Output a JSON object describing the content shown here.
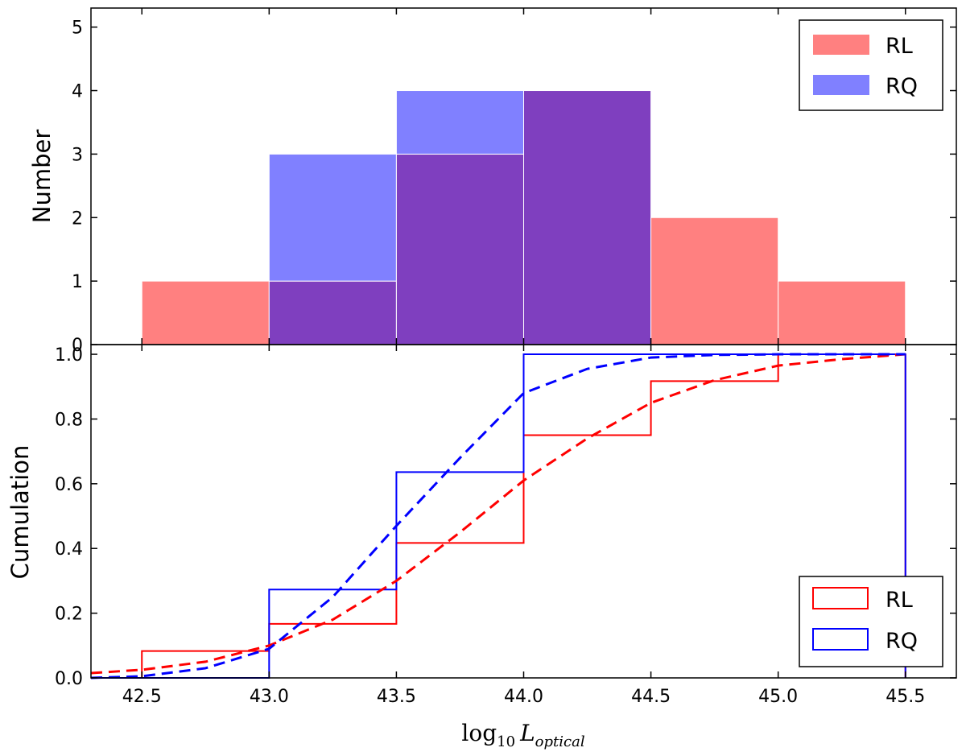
{
  "chart_data": [
    {
      "type": "bar",
      "panel": "top",
      "title": "",
      "xlabel": "",
      "ylabel": "Number",
      "xlim": [
        42.3,
        45.7
      ],
      "ylim": [
        0,
        5.3
      ],
      "yticks": [
        "0",
        "1",
        "2",
        "3",
        "4",
        "5"
      ],
      "bin_edges": [
        42.5,
        43.0,
        43.5,
        44.0,
        44.5,
        45.0,
        45.5
      ],
      "series": [
        {
          "name": "RL",
          "color": "#ff8080",
          "values": [
            1,
            1,
            3,
            4,
            2,
            1
          ]
        },
        {
          "name": "RQ",
          "color": "#8080ff",
          "values": [
            0,
            3,
            4,
            4,
            0,
            0
          ]
        }
      ],
      "overlap_color": "#7f3fbf",
      "legend": {
        "position": "top-right",
        "entries": [
          "RL",
          "RQ"
        ]
      }
    },
    {
      "type": "line",
      "panel": "bottom",
      "title": "",
      "xlabel": "log10 L optical",
      "xlabel_parts": {
        "log": "log",
        "sub10": "10",
        "L": "L",
        "subopt": "optical"
      },
      "ylabel": "Cumulation",
      "xlim": [
        42.3,
        45.7
      ],
      "ylim": [
        0.0,
        1.03
      ],
      "xticks": [
        "42.5",
        "43.0",
        "43.5",
        "44.0",
        "44.5",
        "45.0",
        "45.5"
      ],
      "yticks": [
        "0.0",
        "0.2",
        "0.4",
        "0.6",
        "0.8",
        "1.0"
      ],
      "series": [
        {
          "name": "RL",
          "style": "step",
          "color": "#ff0000",
          "x": [
            42.5,
            43.0,
            43.5,
            44.0,
            44.5,
            45.0,
            45.5
          ],
          "y": [
            0.083,
            0.167,
            0.417,
            0.75,
            0.917,
            1.0,
            0.0
          ]
        },
        {
          "name": "RQ",
          "style": "step",
          "color": "#0000ff",
          "x": [
            43.0,
            43.5,
            44.0,
            45.5
          ],
          "y": [
            0.273,
            0.636,
            1.0,
            0.0
          ]
        },
        {
          "name": "RL fit",
          "style": "dashed",
          "color": "#ff0000",
          "x": [
            42.3,
            42.5,
            42.75,
            43.0,
            43.25,
            43.5,
            43.75,
            44.0,
            44.25,
            44.5,
            44.75,
            45.0,
            45.25,
            45.5
          ],
          "y": [
            0.015,
            0.025,
            0.05,
            0.1,
            0.18,
            0.3,
            0.45,
            0.61,
            0.74,
            0.85,
            0.92,
            0.965,
            0.985,
            1.0
          ]
        },
        {
          "name": "RQ fit",
          "style": "dashed",
          "color": "#0000ff",
          "x": [
            42.3,
            42.5,
            42.75,
            43.0,
            43.25,
            43.5,
            43.75,
            44.0,
            44.25,
            44.5,
            44.75,
            45.0,
            45.25,
            45.5
          ],
          "y": [
            0.0,
            0.005,
            0.03,
            0.09,
            0.25,
            0.47,
            0.68,
            0.88,
            0.955,
            0.99,
            0.998,
            1.0,
            1.0,
            1.0
          ]
        }
      ],
      "legend": {
        "position": "bottom-right",
        "entries": [
          "RL",
          "RQ"
        ]
      }
    }
  ]
}
